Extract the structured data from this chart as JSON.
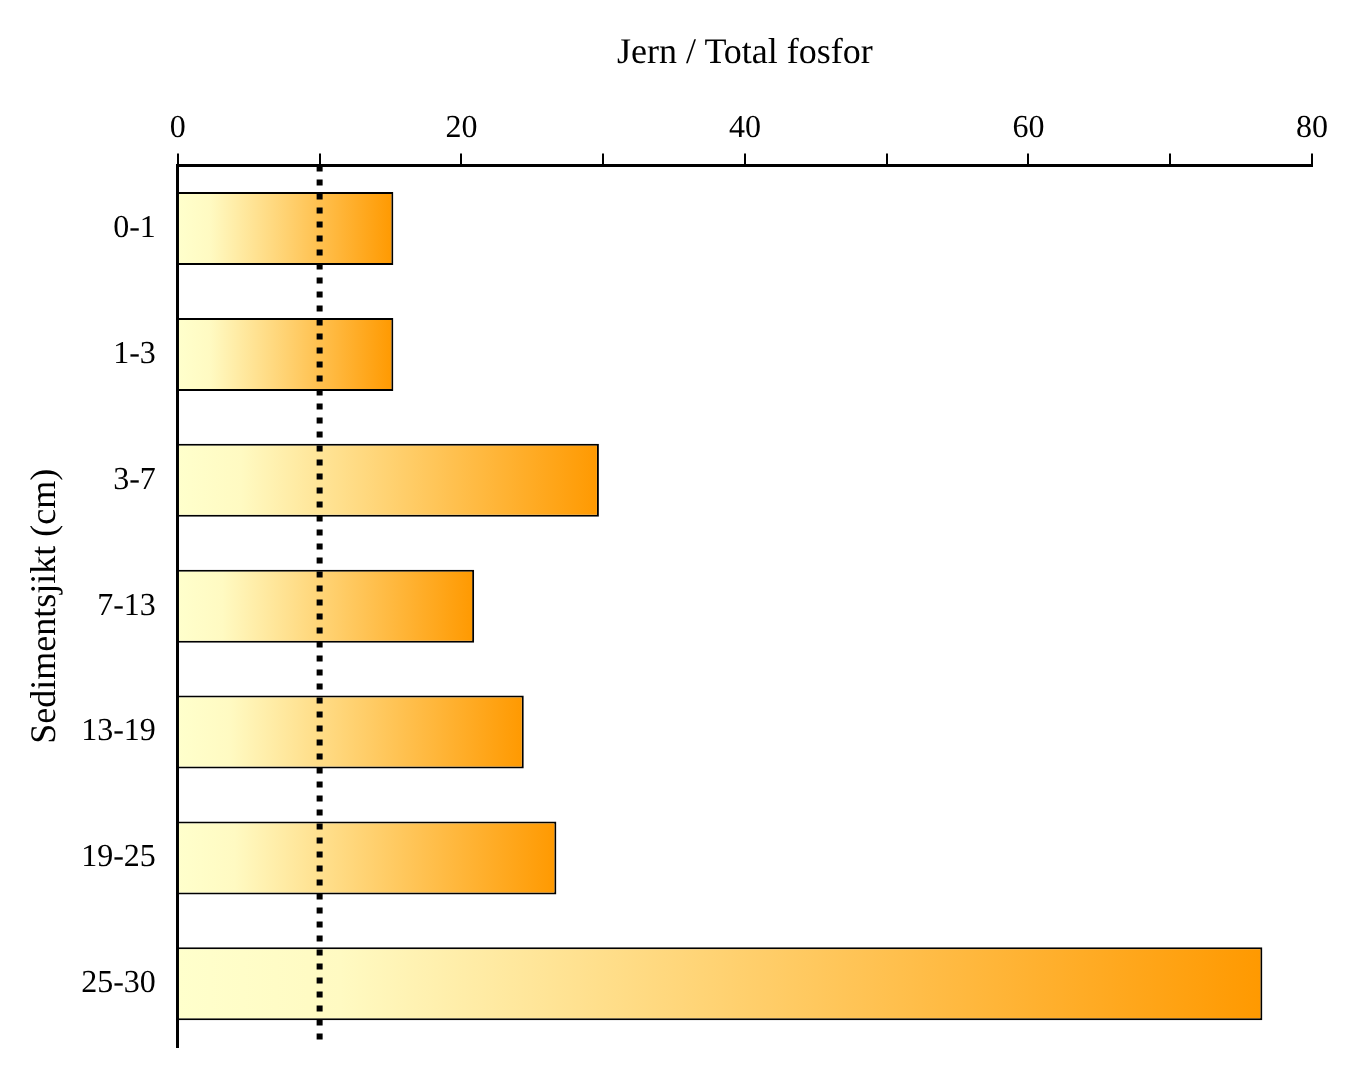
{
  "chart_data": {
    "type": "bar",
    "orientation": "horizontal",
    "xlabel": "Jern / Total fosfor",
    "ylabel": "Sedimentsjikt (cm)",
    "categories": [
      "0-1",
      "1-3",
      "3-7",
      "7-13",
      "13-19",
      "19-25",
      "25-30"
    ],
    "values": [
      15.2,
      15.2,
      29.7,
      20.9,
      24.4,
      26.7,
      76.5
    ],
    "color": "#ff9900",
    "xlim": [
      0,
      80
    ],
    "xticks": [
      0,
      {
        "value": 10,
        "label": null
      },
      20,
      {
        "value": 30,
        "label": null
      },
      40,
      {
        "value": 50,
        "label": null
      },
      60,
      {
        "value": 70,
        "label": null
      },
      80
    ],
    "ref_lines": [
      {
        "axis": "x",
        "value": 10,
        "color": "#000000",
        "line_style": "dotted"
      }
    ],
    "grid": false,
    "legend": false
  }
}
